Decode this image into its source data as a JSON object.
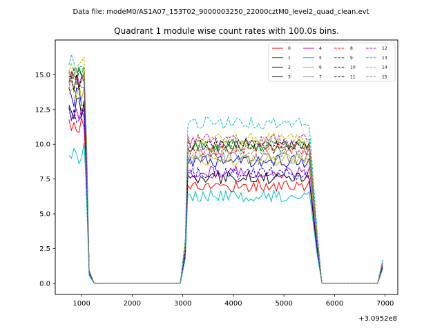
{
  "suptitle": "Data file: modeM0/AS1A07_153T02_9000003250_22000cztM0_level2_quad_clean.evt",
  "chart_data": {
    "type": "line",
    "title": "Quadrant 1 module wise count rates with 100.0s bins.",
    "xlabel": "",
    "ylabel": "",
    "offset_text": "+3.0952e8",
    "xlim": [
      480,
      7250
    ],
    "ylim": [
      -0.8,
      17.5
    ],
    "xticks": [
      1000,
      2000,
      3000,
      4000,
      5000,
      6000,
      7000
    ],
    "xtick_labels": [
      "1000",
      "2000",
      "3000",
      "4000",
      "5000",
      "6000",
      "7000"
    ],
    "yticks": [
      0.0,
      2.5,
      5.0,
      7.5,
      10.0,
      12.5,
      15.0
    ],
    "ytick_labels": [
      "0.0",
      "2.5",
      "5.0",
      "7.5",
      "10.0",
      "12.5",
      "15.0"
    ],
    "grid": false,
    "legend_location": "upper right",
    "x_segments": [
      {
        "start": 750,
        "count": 9,
        "step": 50
      },
      {
        "start": 1250,
        "count": 18,
        "step": 100
      },
      {
        "start": 3050,
        "count": 50,
        "step": 50
      },
      {
        "start": 5650,
        "count": 13,
        "step": 100
      },
      {
        "start": 6950,
        "count": 1,
        "step": 50
      }
    ],
    "series": [
      {
        "name": "0",
        "color": "#ff0000",
        "dash": "solid",
        "base1": 11.5,
        "base2": 7.0,
        "end": 1.1
      },
      {
        "name": "1",
        "color": "#008000",
        "dash": "solid",
        "base1": 15.0,
        "base2": 9.9,
        "end": 1.5
      },
      {
        "name": "2",
        "color": "#0000ff",
        "dash": "solid",
        "base1": 13.5,
        "base2": 8.8,
        "end": 1.3
      },
      {
        "name": "3",
        "color": "#000000",
        "dash": "solid",
        "base1": 12.6,
        "base2": 7.6,
        "end": 1.2
      },
      {
        "name": "4",
        "color": "#bf00bf",
        "dash": "solid",
        "base1": 12.3,
        "base2": 8.0,
        "end": 1.2
      },
      {
        "name": "5",
        "color": "#00bfbf",
        "dash": "solid",
        "base1": 9.3,
        "base2": 6.3,
        "end": 1.0
      },
      {
        "name": "6",
        "color": "#bfbf00",
        "dash": "solid",
        "base1": 14.0,
        "base2": 8.9,
        "end": 1.4
      },
      {
        "name": "7",
        "color": "#808080",
        "dash": "solid",
        "base1": 14.2,
        "base2": 9.0,
        "end": 1.4
      },
      {
        "name": "8",
        "color": "#ff0000",
        "dash": "dashed",
        "base1": 14.4,
        "base2": 9.6,
        "end": 1.5
      },
      {
        "name": "9",
        "color": "#008000",
        "dash": "dashed",
        "base1": 14.8,
        "base2": 9.9,
        "end": 1.5
      },
      {
        "name": "10",
        "color": "#0000ff",
        "dash": "dashed",
        "base1": 12.0,
        "base2": 7.9,
        "end": 1.2
      },
      {
        "name": "11",
        "color": "#000000",
        "dash": "dashed",
        "base1": 14.5,
        "base2": 10.0,
        "end": 1.5
      },
      {
        "name": "12",
        "color": "#bf00bf",
        "dash": "dashed",
        "base1": 15.0,
        "base2": 10.3,
        "end": 1.6
      },
      {
        "name": "13",
        "color": "#00bfbf",
        "dash": "dashed",
        "base1": 15.9,
        "base2": 11.5,
        "end": 1.7
      },
      {
        "name": "14",
        "color": "#bfbf00",
        "dash": "dashed",
        "base1": 15.6,
        "base2": 10.4,
        "end": 1.6
      },
      {
        "name": "15",
        "color": "#808080",
        "dash": "dashed",
        "base1": 14.6,
        "base2": 9.5,
        "end": 1.5
      }
    ]
  }
}
